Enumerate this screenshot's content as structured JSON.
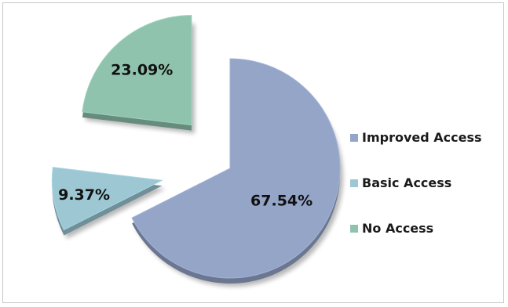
{
  "chart_data": {
    "type": "pie",
    "categories": [
      "Improved Access",
      "Basic Access",
      "No Access"
    ],
    "values": [
      67.54,
      9.37,
      23.09
    ],
    "value_labels": [
      "67.54%",
      "9.37%",
      "23.09%"
    ],
    "colors": [
      "#95a5c8",
      "#9cc7d3",
      "#8fc3ad"
    ],
    "exploded": true,
    "style": "3d",
    "legend_position": "right"
  },
  "legend": {
    "items": [
      {
        "label": "Improved Access",
        "color": "#95a5c8"
      },
      {
        "label": "Basic Access",
        "color": "#9cc7d3"
      },
      {
        "label": "No Access",
        "color": "#8fc3ad"
      }
    ]
  }
}
